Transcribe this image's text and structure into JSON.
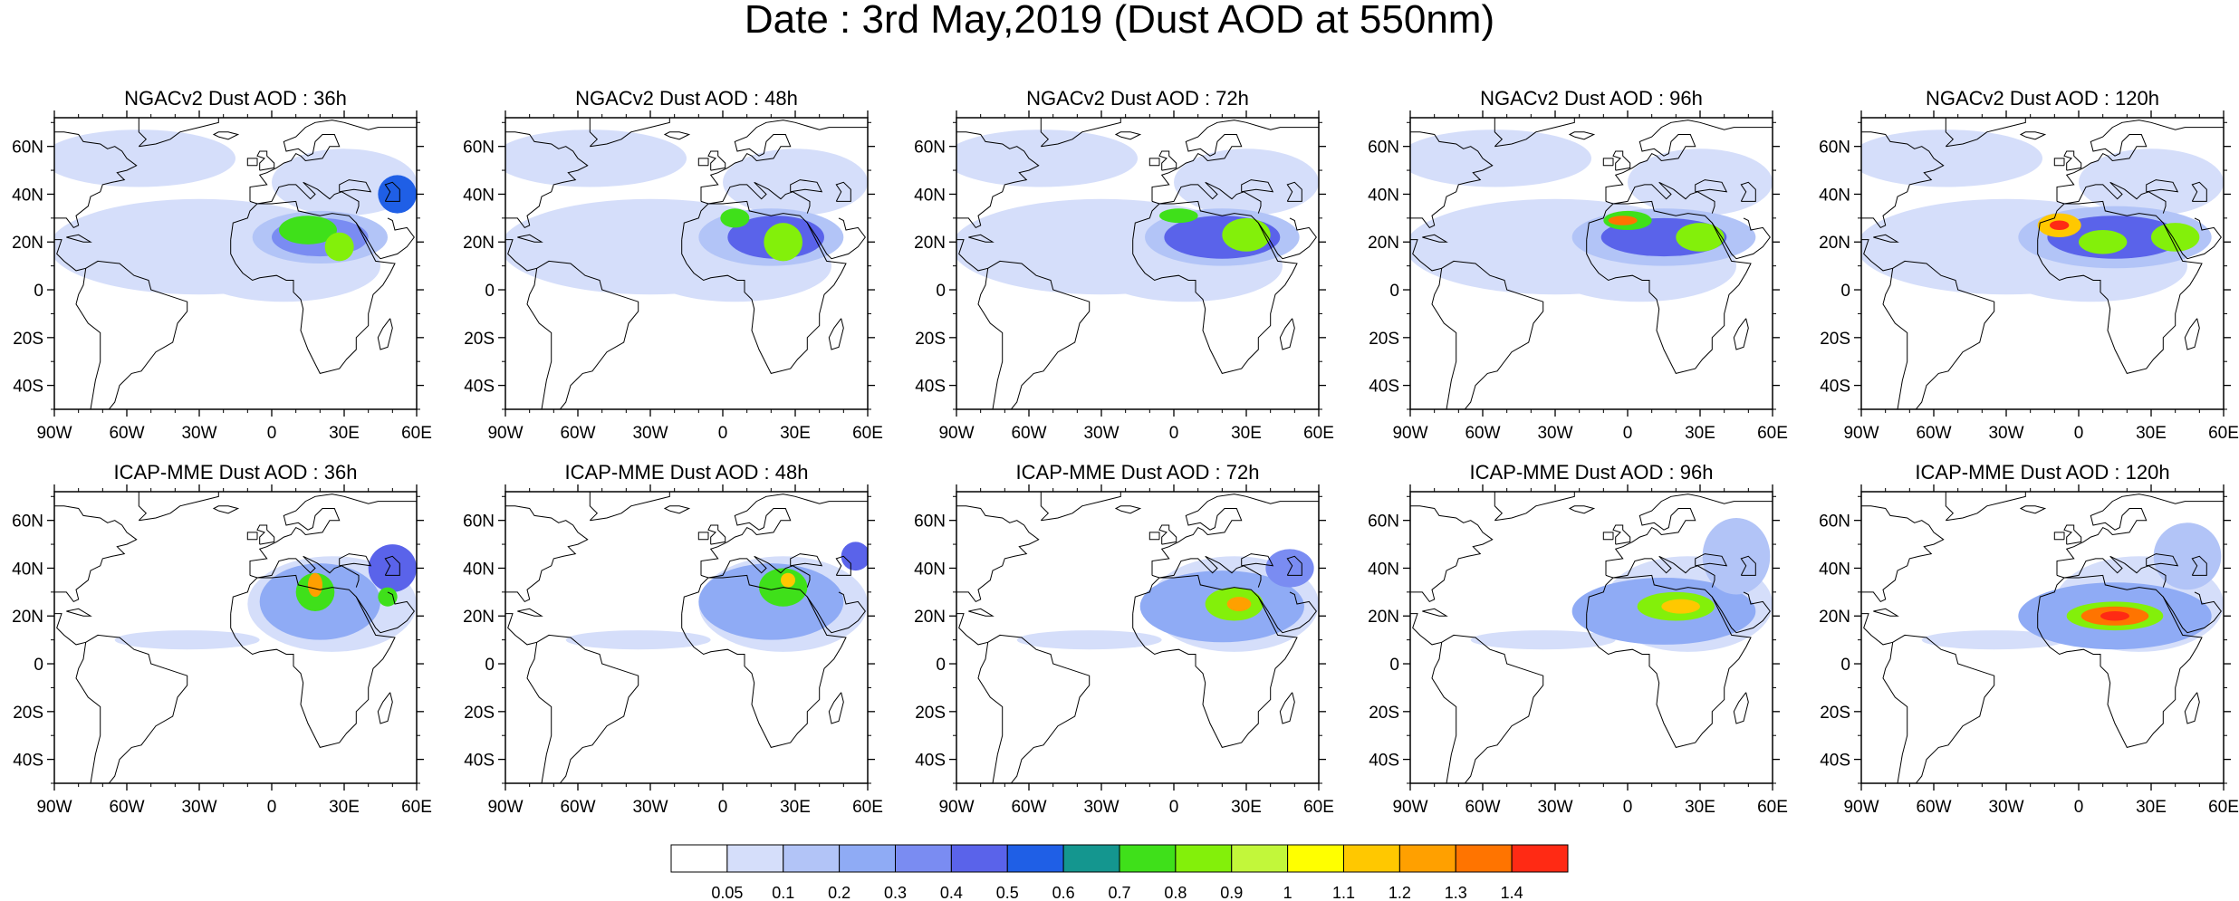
{
  "title": "Date : 3rd May,2019 (Dust AOD at 550nm)",
  "axes": {
    "lon_ticks": [
      "90W",
      "60W",
      "30W",
      "0",
      "30E",
      "60E"
    ],
    "lat_ticks": [
      "60N",
      "40N",
      "20N",
      "0",
      "20S",
      "40S"
    ]
  },
  "panels": [
    {
      "title": "NGACv2 Dust AOD : 36h",
      "model": "NGACv2",
      "hour": 36
    },
    {
      "title": "NGACv2 Dust AOD : 48h",
      "model": "NGACv2",
      "hour": 48
    },
    {
      "title": "NGACv2 Dust AOD : 72h",
      "model": "NGACv2",
      "hour": 72
    },
    {
      "title": "NGACv2 Dust AOD : 96h",
      "model": "NGACv2",
      "hour": 96
    },
    {
      "title": "NGACv2 Dust AOD : 120h",
      "model": "NGACv2",
      "hour": 120
    },
    {
      "title": "ICAP-MME Dust AOD : 36h",
      "model": "ICAP-MME",
      "hour": 36
    },
    {
      "title": "ICAP-MME Dust AOD : 48h",
      "model": "ICAP-MME",
      "hour": 48
    },
    {
      "title": "ICAP-MME Dust AOD : 72h",
      "model": "ICAP-MME",
      "hour": 72
    },
    {
      "title": "ICAP-MME Dust AOD : 96h",
      "model": "ICAP-MME",
      "hour": 96
    },
    {
      "title": "ICAP-MME Dust AOD : 120h",
      "model": "ICAP-MME",
      "hour": 120
    }
  ],
  "colorbar": {
    "labels": [
      "0.05",
      "0.1",
      "0.2",
      "0.3",
      "0.4",
      "0.5",
      "0.6",
      "0.7",
      "0.8",
      "0.9",
      "1",
      "1.1",
      "1.2",
      "1.3",
      "1.4"
    ],
    "colors": [
      "#ffffff",
      "#d5defa",
      "#b2c4f7",
      "#8fabf5",
      "#7a8cf2",
      "#5a63ea",
      "#1f5fe6",
      "#14968f",
      "#3fe01a",
      "#83f00a",
      "#c2f73a",
      "#ffff00",
      "#ffc800",
      "#ffa000",
      "#ff7400",
      "#ff2a14"
    ]
  }
}
